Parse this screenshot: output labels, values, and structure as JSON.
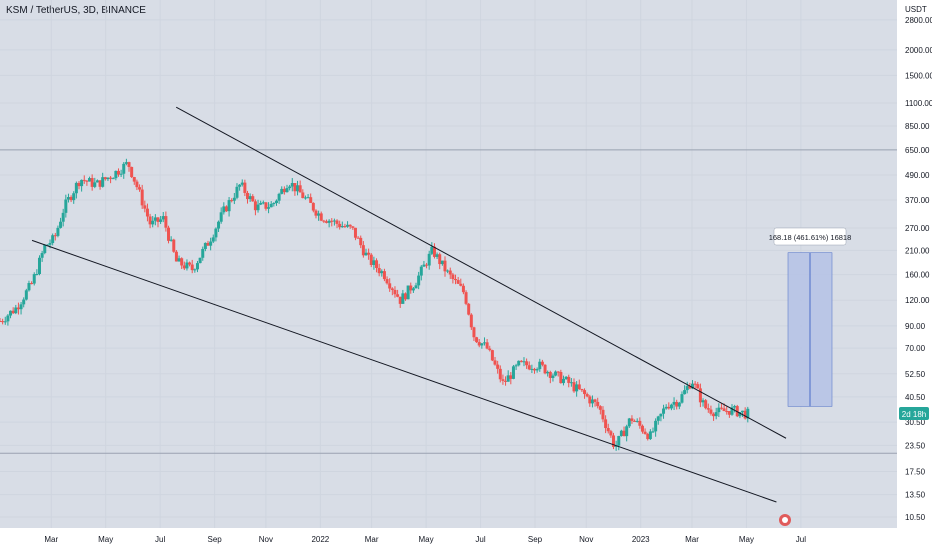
{
  "header": {
    "title": "KSM / TetherUS, 3D, BINANCE"
  },
  "colors": {
    "up": "#26a69a",
    "down": "#ef5350",
    "line": "#131722",
    "box": "#b3c1e6",
    "box_border": "#4a6cc8"
  },
  "chart_data": {
    "type": "candlestick",
    "title": "KSM / TetherUS, 3D, BINANCE",
    "ylabel": "USDT",
    "y_scale": "log",
    "ylim": [
      9.6,
      3200
    ],
    "y_ticks": [
      "2800.00",
      "2000.00",
      "1500.00",
      "1100.00",
      "850.00",
      "650.00",
      "490.00",
      "370.00",
      "270.00",
      "210.00",
      "160.00",
      "120.00",
      "90.00",
      "70.00",
      "52.50",
      "40.50",
      "30.50",
      "23.50",
      "17.50",
      "13.50",
      "10.50"
    ],
    "x_ticks": [
      "Mar",
      "May",
      "Jul",
      "Sep",
      "Nov",
      "2022",
      "Mar",
      "May",
      "Jul",
      "Sep",
      "Nov",
      "2023",
      "Mar",
      "May",
      "Jul"
    ],
    "price_badge": "2d 18h",
    "measure_label": "168.18 (461.61%) 16818",
    "measure_range": [
      36.4,
      204.6
    ],
    "channel_upper": [
      [
        2021.55,
        1050
      ],
      [
        2023.36,
        30.8
      ]
    ],
    "channel_lower": [
      [
        2021.1,
        235
      ],
      [
        2023.33,
        13.3
      ]
    ],
    "horizontal_levels": [
      650,
      21.5
    ],
    "price_anchors": [
      [
        2021.0,
        95
      ],
      [
        2021.05,
        110
      ],
      [
        2021.1,
        145
      ],
      [
        2021.14,
        220
      ],
      [
        2021.17,
        240
      ],
      [
        2021.2,
        340
      ],
      [
        2021.25,
        470
      ],
      [
        2021.3,
        440
      ],
      [
        2021.35,
        490
      ],
      [
        2021.4,
        560
      ],
      [
        2021.43,
        420
      ],
      [
        2021.47,
        280
      ],
      [
        2021.51,
        300
      ],
      [
        2021.55,
        185
      ],
      [
        2021.6,
        170
      ],
      [
        2021.65,
        230
      ],
      [
        2021.7,
        330
      ],
      [
        2021.75,
        440
      ],
      [
        2021.8,
        340
      ],
      [
        2021.85,
        350
      ],
      [
        2021.9,
        460
      ],
      [
        2021.95,
        380
      ],
      [
        2022.0,
        310
      ],
      [
        2022.05,
        285
      ],
      [
        2022.1,
        265
      ],
      [
        2022.15,
        190
      ],
      [
        2022.2,
        160
      ],
      [
        2022.25,
        120
      ],
      [
        2022.3,
        150
      ],
      [
        2022.35,
        210
      ],
      [
        2022.4,
        160
      ],
      [
        2022.45,
        130
      ],
      [
        2022.48,
        80
      ],
      [
        2022.52,
        70
      ],
      [
        2022.57,
        47
      ],
      [
        2022.62,
        58
      ],
      [
        2022.68,
        58
      ],
      [
        2022.72,
        53
      ],
      [
        2022.77,
        48
      ],
      [
        2022.82,
        42
      ],
      [
        2022.87,
        36
      ],
      [
        2022.92,
        23
      ],
      [
        2022.97,
        32
      ],
      [
        2023.03,
        26
      ],
      [
        2023.08,
        37
      ],
      [
        2023.12,
        39
      ],
      [
        2023.16,
        49
      ],
      [
        2023.2,
        36
      ],
      [
        2023.24,
        34
      ],
      [
        2023.28,
        35
      ],
      [
        2023.33,
        33.5
      ]
    ]
  }
}
